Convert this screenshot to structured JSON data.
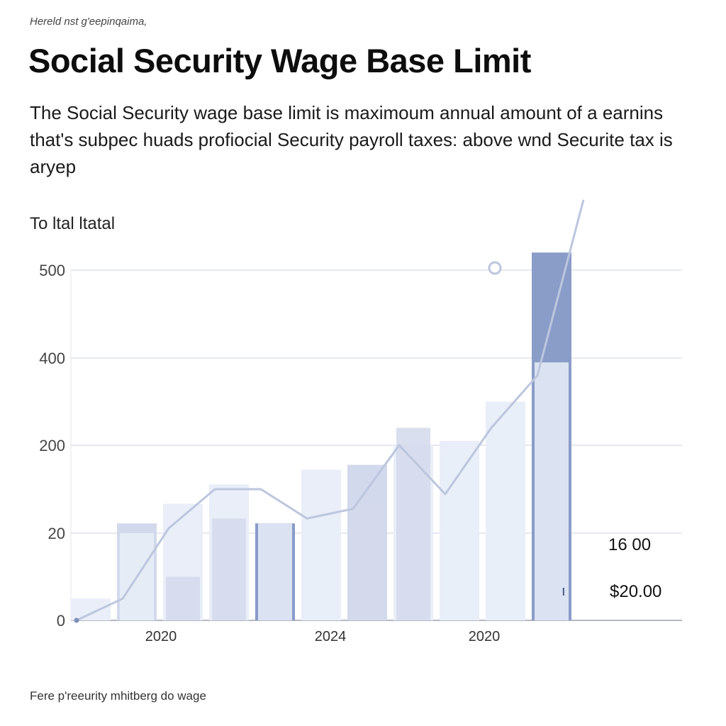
{
  "header": {
    "kicker": "Hereld nst g'eepinqaima,",
    "title": "Social Security Wage Base Limit",
    "description": "The Social Security wage base limit is maximoum annual amount of a earnins that's subpec huads profiocial Security payroll taxes: above wnd Securite tax is aryep"
  },
  "footnote": "Fere p'reeurity mhitberg do wage",
  "colors": {
    "grid": "#d8dbe6",
    "bar_pale": "#e9eef8",
    "bar_light": "#d3d9ec",
    "bar_dark": "#8a9cc8",
    "line": "#bcc6de",
    "axis": "#9aa0b0"
  },
  "chart_data": {
    "type": "bar",
    "title": "To ltal ltatal",
    "xlabel": "",
    "ylabel": "",
    "yticks": [
      "0",
      "20",
      "200",
      "400",
      "500"
    ],
    "xticks": [
      "2020",
      "2024",
      "2020"
    ],
    "ylim": [
      0,
      500
    ],
    "grid": true,
    "series": [
      {
        "values": [
          5,
          40,
          80,
          120,
          40,
          150,
          160,
          200,
          210,
          300,
          520,
          0
        ],
        "shade": [
          "pale",
          "light",
          "pale",
          "pale",
          "dark",
          "pale",
          "light",
          "pale",
          "pale",
          "pale",
          "dark",
          "pale"
        ]
      },
      {
        "values": [
          0,
          20,
          10,
          50,
          40,
          55,
          80,
          240,
          180,
          300,
          390,
          0
        ],
        "shade": [
          "pale",
          "pale",
          "light",
          "light",
          "pale",
          "pale",
          "light",
          "light",
          "pale",
          "pale",
          "pale",
          "pale"
        ]
      }
    ],
    "line": [
      0,
      5,
      30,
      110,
      110,
      50,
      70,
      200,
      100,
      240,
      360,
      580
    ],
    "annotations": [
      "16 00",
      "$20.00"
    ],
    "marker": "ı"
  }
}
